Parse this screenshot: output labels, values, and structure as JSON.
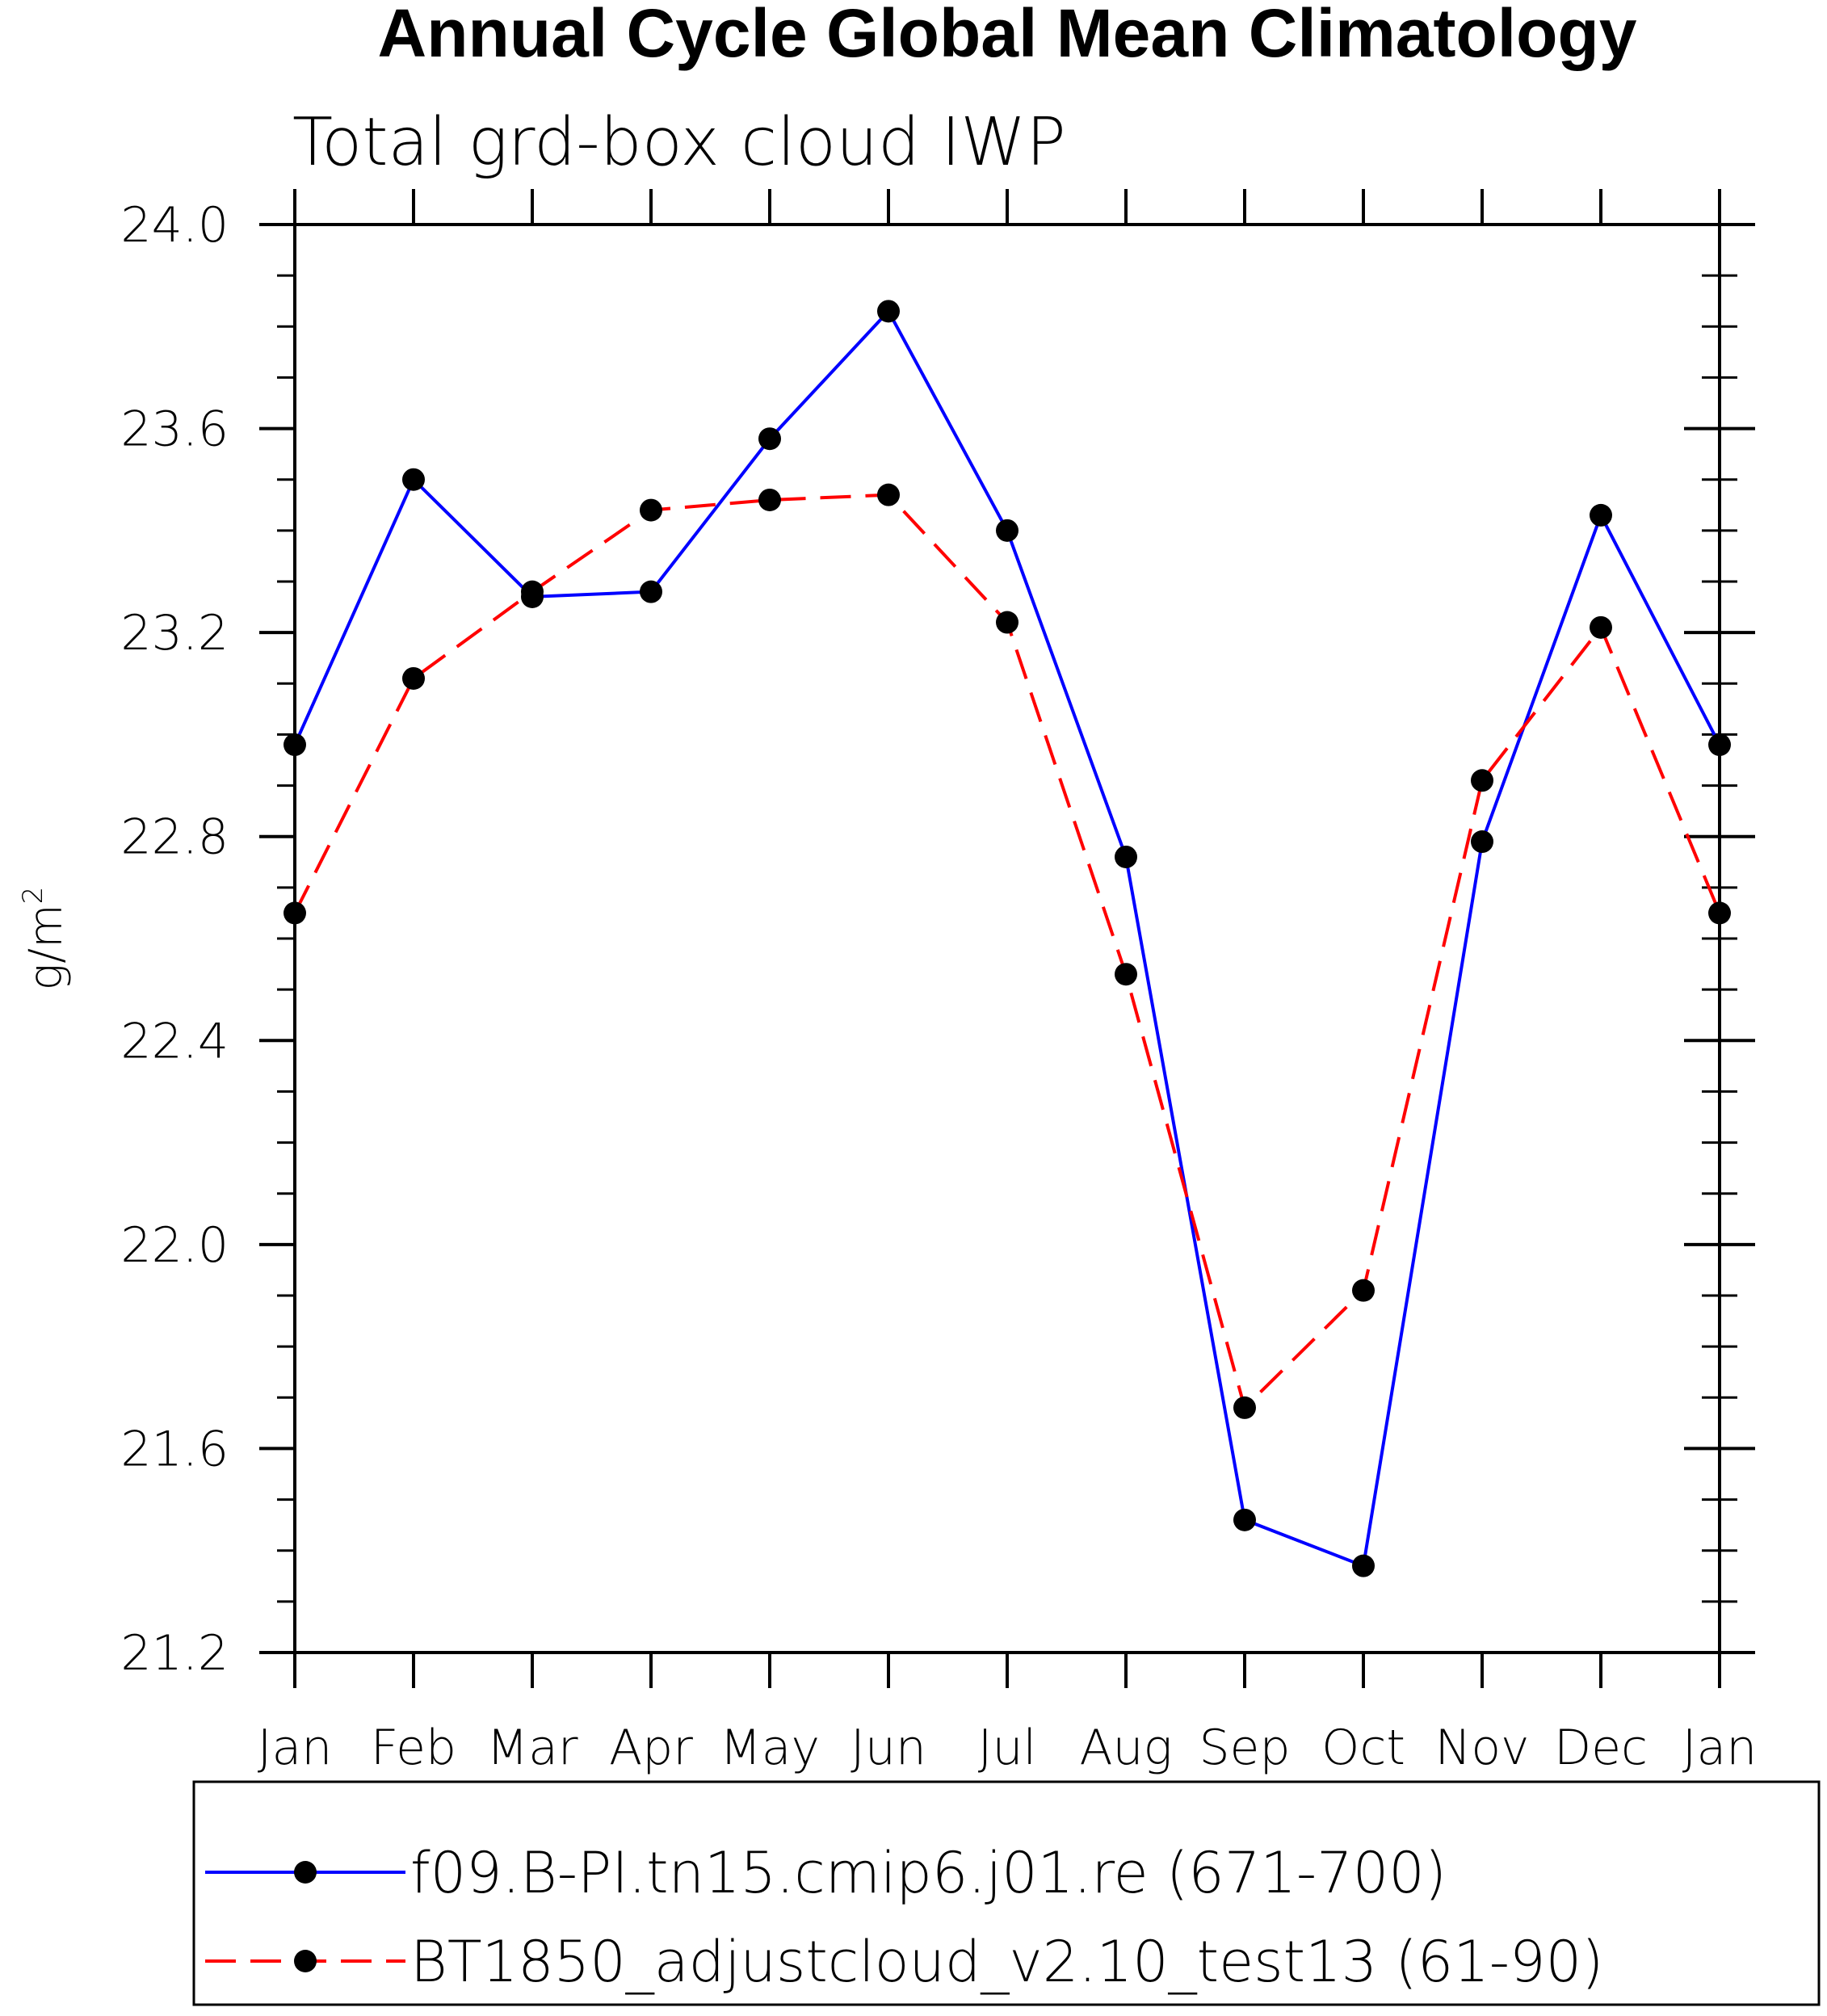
{
  "chart_data": {
    "type": "line",
    "title": "Annual Cycle Global Mean Climatology",
    "subtitle": "Total grd-box cloud IWP",
    "ylabel_base": "g/m",
    "ylabel_sup": "2",
    "xlabel": "",
    "categories": [
      "Jan",
      "Feb",
      "Mar",
      "Apr",
      "May",
      "Jun",
      "Jul",
      "Aug",
      "Sep",
      "Oct",
      "Nov",
      "Dec",
      "Jan"
    ],
    "ylim": [
      21.2,
      24.0
    ],
    "yticks": [
      "24.0",
      "23.6",
      "23.2",
      "22.8",
      "22.4",
      "22.0",
      "21.6",
      "21.2"
    ],
    "series": [
      {
        "name": "f09.B-PI.tn15.cmip6.j01.re (671-700)",
        "color": "#0000ff",
        "dash": "solid",
        "values": [
          22.98,
          23.5,
          23.27,
          23.28,
          23.58,
          23.83,
          23.4,
          22.76,
          21.46,
          21.37,
          22.79,
          23.43,
          22.98
        ]
      },
      {
        "name": "BT1850_adjustcloud_v2.10_test13 (61-90)",
        "color": "#ff0000",
        "dash": "dashed",
        "values": [
          22.65,
          23.11,
          23.28,
          23.44,
          23.46,
          23.47,
          23.22,
          22.53,
          21.68,
          21.91,
          22.91,
          23.21,
          22.65
        ]
      }
    ],
    "grid": false,
    "legend_position": "bottom"
  }
}
